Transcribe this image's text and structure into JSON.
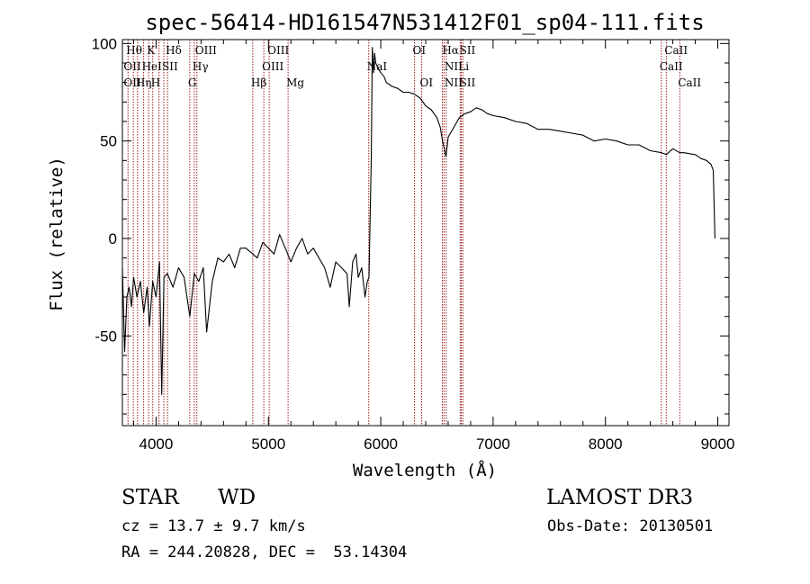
{
  "chart_data": {
    "type": "line",
    "title": "spec-56414-HD161547N531412F01_sp04-111.fits",
    "xlabel": "Wavelength (Å)",
    "ylabel": "Flux (relative)",
    "xlim": [
      3700,
      9100
    ],
    "ylim": [
      -96,
      102
    ],
    "x_ticks": [
      4000,
      5000,
      6000,
      7000,
      8000,
      9000
    ],
    "x_tick_labels": [
      "4000",
      "5000",
      "6000",
      "7000",
      "8000",
      "9000"
    ],
    "y_ticks": [
      -50,
      0,
      50,
      100
    ],
    "y_tick_labels": [
      "-50",
      "0",
      "50",
      "100"
    ],
    "grid": false,
    "series": [
      {
        "name": "spectrum",
        "x": [
          3700,
          3720,
          3740,
          3760,
          3780,
          3800,
          3830,
          3860,
          3890,
          3920,
          3940,
          3970,
          4000,
          4030,
          4050,
          4070,
          4100,
          4150,
          4200,
          4250,
          4300,
          4340,
          4380,
          4420,
          4450,
          4500,
          4550,
          4600,
          4650,
          4700,
          4750,
          4800,
          4861,
          4900,
          4950,
          5000,
          5050,
          5100,
          5150,
          5200,
          5250,
          5300,
          5350,
          5400,
          5450,
          5500,
          5550,
          5600,
          5650,
          5700,
          5720,
          5750,
          5780,
          5800,
          5830,
          5860,
          5880,
          5895,
          5905,
          5915,
          5925,
          5935,
          5945,
          5955,
          5970,
          6000,
          6030,
          6050,
          6100,
          6150,
          6200,
          6250,
          6300,
          6350,
          6400,
          6450,
          6500,
          6530,
          6550,
          6563,
          6580,
          6600,
          6650,
          6700,
          6750,
          6800,
          6850,
          6900,
          6950,
          7000,
          7100,
          7200,
          7300,
          7400,
          7500,
          7600,
          7700,
          7800,
          7900,
          8000,
          8100,
          8200,
          8300,
          8400,
          8500,
          8542,
          8600,
          8662,
          8700,
          8800,
          8850,
          8900,
          8940,
          8960,
          8975
        ],
        "y": [
          -15,
          -58,
          -30,
          -25,
          -35,
          -20,
          -30,
          -22,
          -38,
          -25,
          -45,
          -22,
          -30,
          -12,
          -80,
          -20,
          -18,
          -25,
          -15,
          -20,
          -40,
          -18,
          -22,
          -15,
          -48,
          -22,
          -10,
          -12,
          -8,
          -15,
          -5,
          -5,
          -8,
          -10,
          -2,
          -5,
          -8,
          2,
          -5,
          -12,
          -5,
          0,
          -8,
          -5,
          -10,
          -15,
          -25,
          -12,
          -15,
          -18,
          -35,
          -12,
          -8,
          -20,
          -15,
          -30,
          -22,
          -20,
          10,
          40,
          98,
          85,
          95,
          90,
          88,
          85,
          83,
          80,
          78,
          77,
          75,
          75,
          74,
          72,
          68,
          66,
          62,
          57,
          50,
          47,
          42,
          52,
          57,
          62,
          64,
          65,
          67,
          66,
          64,
          63,
          62,
          60,
          59,
          56,
          56,
          55,
          54,
          53,
          50,
          51,
          50,
          48,
          48,
          45,
          44,
          43,
          46,
          44,
          44,
          43,
          41,
          40,
          38,
          35,
          0
        ]
      }
    ],
    "line_markers": [
      {
        "wavelength": 3750,
        "labels": [
          "Hθ",
          "OII",
          "OII"
        ]
      },
      {
        "wavelength": 3797,
        "labels": []
      },
      {
        "wavelength": 3835,
        "labels": []
      },
      {
        "wavelength": 3889,
        "labels": [
          "HeI"
        ]
      },
      {
        "wavelength": 3934,
        "labels": [
          "K"
        ]
      },
      {
        "wavelength": 3970,
        "labels": [
          "H"
        ]
      },
      {
        "wavelength": 4026,
        "labels": []
      },
      {
        "wavelength": 4069,
        "labels": [
          "SII"
        ]
      },
      {
        "wavelength": 4102,
        "labels": [
          "Hδ",
          "SII"
        ]
      },
      {
        "wavelength": 4300,
        "labels": [
          "G"
        ]
      },
      {
        "wavelength": 4340,
        "labels": [
          "Hγ"
        ]
      },
      {
        "wavelength": 4363,
        "labels": [
          "OIII"
        ]
      },
      {
        "wavelength": 4861,
        "labels": [
          "Hβ"
        ]
      },
      {
        "wavelength": 4959,
        "labels": [
          "OIII"
        ]
      },
      {
        "wavelength": 5007,
        "labels": [
          "OIII"
        ]
      },
      {
        "wavelength": 5175,
        "labels": [
          "Mg"
        ]
      },
      {
        "wavelength": 5893,
        "labels": [
          "NaI"
        ]
      },
      {
        "wavelength": 6300,
        "labels": [
          "OI"
        ]
      },
      {
        "wavelength": 6364,
        "labels": [
          "OI"
        ]
      },
      {
        "wavelength": 6548,
        "labels": []
      },
      {
        "wavelength": 6563,
        "labels": [
          "Hα"
        ]
      },
      {
        "wavelength": 6583,
        "labels": [
          "NII",
          "NII"
        ]
      },
      {
        "wavelength": 6707,
        "labels": [
          "Li"
        ]
      },
      {
        "wavelength": 6717,
        "labels": [
          "SII",
          "SII"
        ]
      },
      {
        "wavelength": 6731,
        "labels": []
      },
      {
        "wavelength": 8498,
        "labels": [
          "CaII"
        ]
      },
      {
        "wavelength": 8542,
        "labels": [
          "CaII"
        ]
      },
      {
        "wavelength": 8662,
        "labels": [
          "CaII"
        ]
      }
    ],
    "marker_labels": [
      {
        "text": "Hθ",
        "wavelength": 3750,
        "row": 0
      },
      {
        "text": "K",
        "wavelength": 3934,
        "row": 0
      },
      {
        "text": "Hδ",
        "wavelength": 4102,
        "row": 0
      },
      {
        "text": "OIII",
        "wavelength": 4363,
        "row": 0
      },
      {
        "text": "OIII",
        "wavelength": 5007,
        "row": 0
      },
      {
        "text": "OI",
        "wavelength": 6300,
        "row": 0
      },
      {
        "text": "Hα",
        "wavelength": 6563,
        "row": 0
      },
      {
        "text": "SII",
        "wavelength": 6717,
        "row": 0
      },
      {
        "text": "CaII",
        "wavelength": 8542,
        "row": 0
      },
      {
        "text": "OII",
        "wavelength": 3727,
        "row": 1
      },
      {
        "text": "HeI",
        "wavelength": 3889,
        "row": 1
      },
      {
        "text": "SII",
        "wavelength": 4069,
        "row": 1
      },
      {
        "text": "Hγ",
        "wavelength": 4340,
        "row": 1
      },
      {
        "text": "OIII",
        "wavelength": 4959,
        "row": 1
      },
      {
        "text": "NaI",
        "wavelength": 5893,
        "row": 1
      },
      {
        "text": "NII",
        "wavelength": 6583,
        "row": 1
      },
      {
        "text": "Li",
        "wavelength": 6707,
        "row": 1
      },
      {
        "text": "CaII",
        "wavelength": 8498,
        "row": 1
      },
      {
        "text": "OII",
        "wavelength": 3727,
        "row": 2
      },
      {
        "text": "Hη",
        "wavelength": 3835,
        "row": 2
      },
      {
        "text": "H",
        "wavelength": 3970,
        "row": 2
      },
      {
        "text": "G",
        "wavelength": 4300,
        "row": 2
      },
      {
        "text": "Hβ",
        "wavelength": 4861,
        "row": 2
      },
      {
        "text": "Mg",
        "wavelength": 5175,
        "row": 2
      },
      {
        "text": "OI",
        "wavelength": 6364,
        "row": 2
      },
      {
        "text": "NII",
        "wavelength": 6583,
        "row": 2
      },
      {
        "text": "SII",
        "wavelength": 6717,
        "row": 2
      },
      {
        "text": "CaII",
        "wavelength": 8662,
        "row": 2
      }
    ]
  },
  "info": {
    "object_class": "STAR",
    "subclass": "WD",
    "survey": "LAMOST DR3",
    "cz": "cz = 13.7 ± 9.7 km/s",
    "obs_date": "Obs-Date: 20130501",
    "coords": "RA = 244.20828, DEC =  53.14304"
  },
  "colors": {
    "spectrum": "#000000",
    "marker": "#9b1b1b",
    "axes": "#000000"
  }
}
